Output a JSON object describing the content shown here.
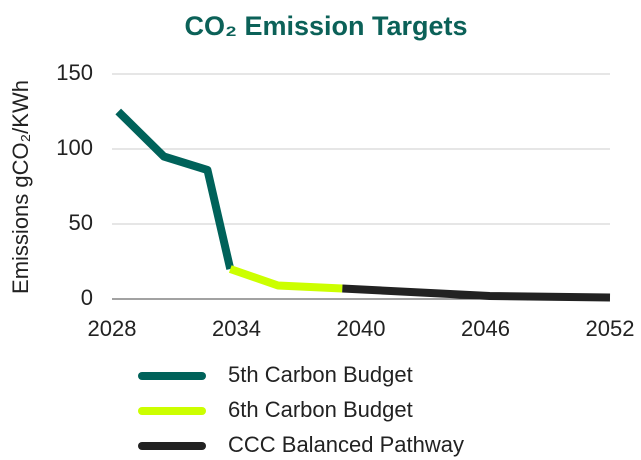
{
  "chart_data": {
    "type": "line",
    "title": "CO₂ Emission Targets",
    "y_label": "Emissions gCO₂/KWh",
    "xlim": [
      2028,
      2052
    ],
    "xticks": [
      2028,
      2034,
      2040,
      2046,
      2052
    ],
    "ylim": [
      0,
      150
    ],
    "yticks": [
      0,
      50,
      100,
      150
    ],
    "grid": true,
    "legend": "bottom",
    "series": [
      {
        "name": "5th Carbon Budget",
        "color": "#00625a",
        "x": [
          2028.3,
          2030.5,
          2032.6,
          2033.7
        ],
        "values": [
          125,
          95,
          86,
          20
        ]
      },
      {
        "name": "6th Carbon Budget",
        "color": "#ccff00",
        "x": [
          2033.7,
          2036,
          2039.1
        ],
        "values": [
          20,
          9,
          7
        ]
      },
      {
        "name": "CCC Balanced Pathway",
        "color": "#222222",
        "x": [
          2039.1,
          2046.2,
          2052
        ],
        "values": [
          7,
          2,
          1
        ]
      }
    ]
  }
}
